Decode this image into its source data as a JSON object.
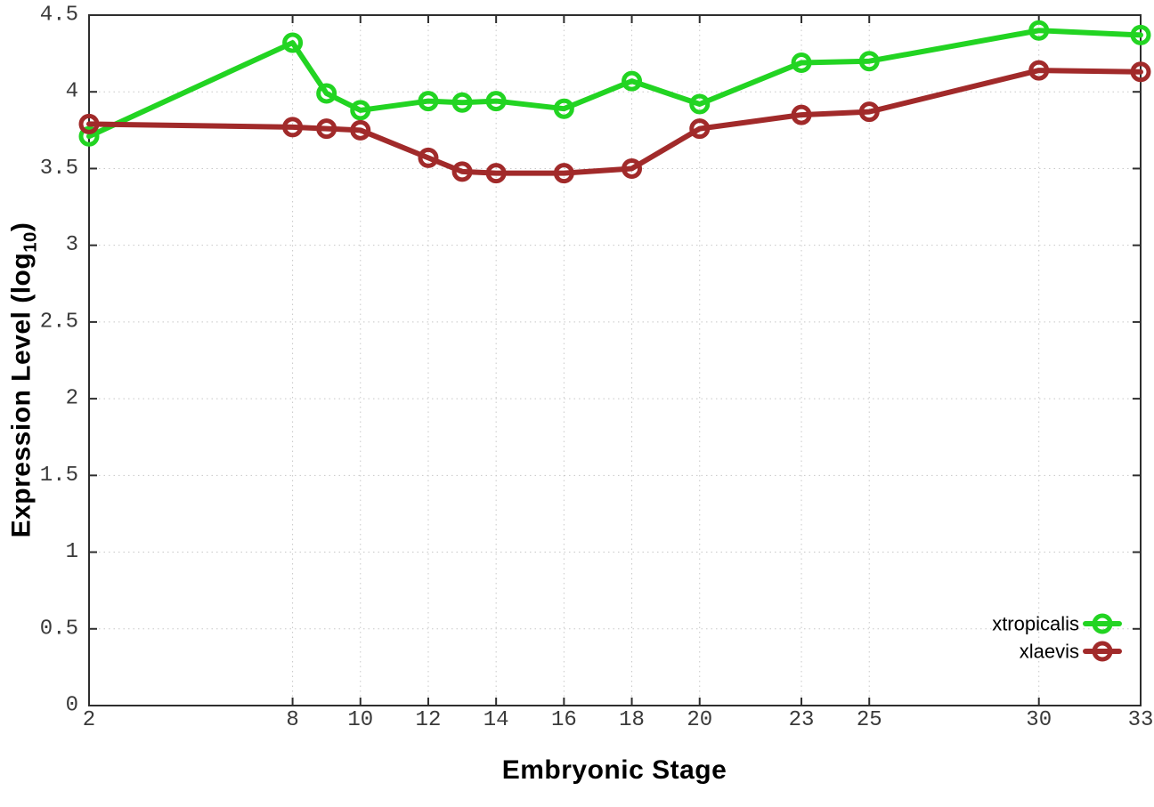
{
  "chart_data": {
    "type": "line",
    "title": "",
    "xlabel": "Embryonic Stage",
    "ylabel": "Expression Level (log10)",
    "ylabel_parts": {
      "pre": "Expression Level (log",
      "sub": "10",
      "post": ")"
    },
    "x": [
      2,
      8,
      9,
      10,
      12,
      13,
      14,
      16,
      18,
      20,
      23,
      25,
      30,
      33
    ],
    "series": [
      {
        "name": "xtropicalis",
        "color": "#22d422",
        "marker": "open-circle",
        "values": [
          3.71,
          4.32,
          3.99,
          3.88,
          3.94,
          3.93,
          3.94,
          3.89,
          4.07,
          3.92,
          4.19,
          4.2,
          4.4,
          4.37
        ]
      },
      {
        "name": "xlaevis",
        "color": "#a12a2a",
        "marker": "open-circle",
        "values": [
          3.79,
          3.77,
          3.76,
          3.75,
          3.57,
          3.48,
          3.47,
          3.47,
          3.5,
          3.76,
          3.85,
          3.87,
          4.14,
          4.13
        ]
      }
    ],
    "xlim": [
      2,
      33
    ],
    "ylim": [
      0,
      4.5
    ],
    "xticks": {
      "values": [
        2,
        8,
        10,
        12,
        14,
        16,
        18,
        20,
        23,
        25,
        30,
        33
      ],
      "labels": [
        "2",
        "8",
        "10",
        "12",
        "14",
        "16",
        "18",
        "20",
        "23",
        "25",
        "30",
        "33"
      ]
    },
    "yticks": {
      "values": [
        0,
        0.5,
        1,
        1.5,
        2,
        2.5,
        3,
        3.5,
        4,
        4.5
      ],
      "labels": [
        "0",
        "0.5",
        "1",
        "1.5",
        "2",
        "2.5",
        "3",
        "3.5",
        "4",
        "4.5"
      ]
    },
    "grid": true,
    "grid_style": "dotted",
    "legend_position": "bottom-right",
    "legend_entries": [
      "xtropicalis",
      "xlaevis"
    ],
    "colors": {
      "background": "#ffffff",
      "grid": "#c8c8c8",
      "border": "#2e2e2e",
      "tick_label": "#3a3a3a",
      "axis_title": "#000000"
    }
  }
}
